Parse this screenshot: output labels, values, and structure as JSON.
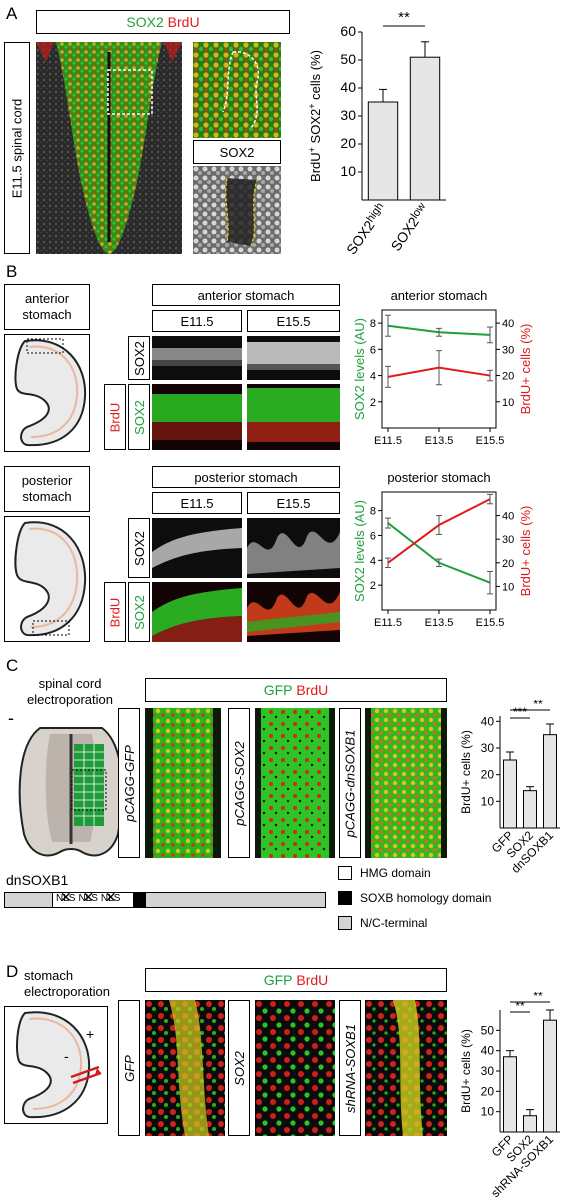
{
  "panels": {
    "A": {
      "letter": "A",
      "title_sox2": "SOX2",
      "title_brdu": "BrdU",
      "side_label": "E11.5 spinal cord",
      "inset_label": "SOX2",
      "chart": {
        "ylabel_pre": "BrdU",
        "ylabel_mid": " SOX2",
        "ylabel_post": " cells (%)",
        "sup": "+",
        "significance": "**"
      }
    },
    "B": {
      "letter": "B",
      "ant_label_1": "anterior",
      "ant_label_2": "stomach",
      "post_label_1": "posterior",
      "post_label_2": "stomach",
      "ant_header": "anterior stomach",
      "post_header": "posterior stomach",
      "stage_1": "E11.5",
      "stage_2": "E15.5",
      "row_sox2": "SOX2",
      "row_merge_sox2": "SOX2",
      "row_merge_brdu": "BrdU",
      "chart_ant_title": "anterior stomach",
      "chart_post_title": "posterior stomach",
      "left_axis": "SOX2 levels (AU)",
      "right_axis": "BrdU+ cells (%)"
    },
    "C": {
      "letter": "C",
      "electro_1": "spinal cord",
      "electro_2": "electroporation",
      "minus": "-",
      "plus": "+",
      "title_gfp": "GFP",
      "title_brdu": "BrdU",
      "cond_1": "pCAGG-GFP",
      "cond_2": "pCAGG-SOX2",
      "cond_3": "pCAGG-dnSOXB1",
      "construct": "dnSOXB1",
      "nls_1": "NLS",
      "nls_2": "NLS",
      "nls_3": "NLS",
      "legend_hmg": "HMG domain",
      "legend_soxb": "SOXB homology domain",
      "legend_nc": "N/C-terminal",
      "chart_ylabel": "BrdU+ cells (%)",
      "sig_1": "***",
      "sig_2": "**"
    },
    "D": {
      "letter": "D",
      "electro_1": "stomach",
      "electro_2": "electroporation",
      "plus": "+",
      "minus": "-",
      "title_gfp": "GFP",
      "title_brdu": "BrdU",
      "cond_1": "GFP",
      "cond_2": "SOX2",
      "cond_3": "shRNA-SOXB1",
      "chart_ylabel": "BrdU+ cells (%)",
      "sig_1": "**",
      "sig_2": "**"
    }
  },
  "colors": {
    "green": "#1fa03c",
    "red": "#e21a1a",
    "bar_fill": "#e6e6e6"
  },
  "chart_data": [
    {
      "id": "A",
      "type": "bar",
      "categories": [
        "SOX2high",
        "SOX2low"
      ],
      "category_parts": [
        [
          "SOX2",
          "high"
        ],
        [
          "SOX2",
          "low"
        ]
      ],
      "values": [
        35,
        51
      ],
      "errors": [
        4.5,
        5.5
      ],
      "ylim": [
        0,
        60
      ],
      "yticks": [
        "10",
        "20",
        "30",
        "40",
        "50",
        "60"
      ]
    },
    {
      "id": "B-anterior",
      "type": "line",
      "title": "anterior stomach",
      "x": [
        "E11.5",
        "E13.5",
        "E15.5"
      ],
      "series": [
        {
          "values": [
            7.8,
            7.3,
            7.1
          ],
          "errors": [
            0.8,
            0.3,
            0.6
          ],
          "axis": "left",
          "color": "#1fa03c"
        },
        {
          "values": [
            19.5,
            23,
            20
          ],
          "errors": [
            4,
            6.5,
            2
          ],
          "axis": "right",
          "color": "#e21a1a"
        }
      ],
      "left_ylim": [
        0,
        9
      ],
      "left_yticks": [
        "2",
        "4",
        "6",
        "8"
      ],
      "right_ylim": [
        0,
        45
      ],
      "right_yticks": [
        "10",
        "20",
        "30",
        "40"
      ],
      "xlabel": "",
      "ylabel": "SOX2 levels (AU)",
      "ylabel_right": "BrdU+ cells (%)"
    },
    {
      "id": "B-posterior",
      "type": "line",
      "title": "posterior stomach",
      "x": [
        "E11.5",
        "E13.5",
        "E15.5"
      ],
      "series": [
        {
          "values": [
            7,
            3.8,
            2.2
          ],
          "errors": [
            0.4,
            0.3,
            0.9
          ],
          "axis": "left",
          "color": "#1fa03c"
        },
        {
          "values": [
            20,
            36,
            47
          ],
          "errors": [
            2,
            4,
            2
          ],
          "axis": "right",
          "color": "#e21a1a"
        }
      ],
      "left_ylim": [
        0,
        9.5
      ],
      "left_yticks": [
        "2",
        "4",
        "6",
        "8"
      ],
      "right_ylim": [
        0,
        50
      ],
      "right_yticks": [
        "10",
        "20",
        "30",
        "40"
      ],
      "ylabel": "SOX2 levels (AU)",
      "ylabel_right": "BrdU+ cells (%)"
    },
    {
      "id": "C",
      "type": "bar",
      "categories": [
        "GFP",
        "SOX2",
        "dnSOXB1"
      ],
      "values": [
        25.5,
        14,
        35
      ],
      "errors": [
        3,
        1.5,
        4
      ],
      "ylim": [
        0,
        42
      ],
      "yticks": [
        "10",
        "20",
        "30",
        "40"
      ],
      "ylabel": "BrdU+ cells (%)"
    },
    {
      "id": "D",
      "type": "bar",
      "categories": [
        "GFP",
        "SOX2",
        "shRNA-SOXB1"
      ],
      "values": [
        37,
        8,
        55
      ],
      "errors": [
        3,
        3,
        5
      ],
      "ylim": [
        0,
        60
      ],
      "yticks": [
        "10",
        "20",
        "30",
        "40",
        "50"
      ],
      "ylabel": "BrdU+ cells (%)"
    }
  ]
}
